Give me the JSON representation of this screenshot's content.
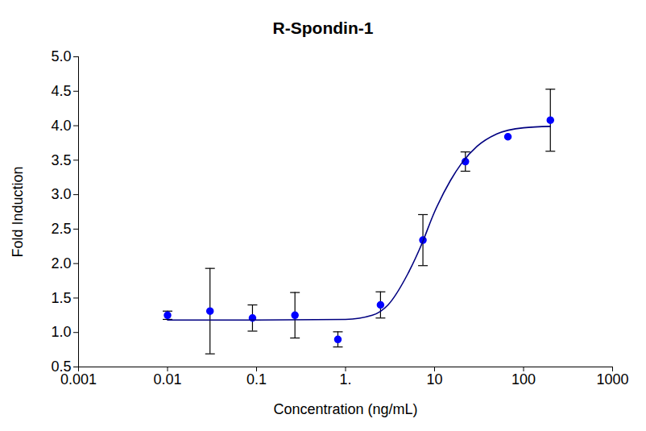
{
  "chart_data": {
    "type": "scatter",
    "title": "R-Spondin-1",
    "x_label": "Concentration (ng/mL)",
    "y_label": "Fold Induction",
    "log": "x",
    "grid": false,
    "xlim": [
      0.001,
      1000
    ],
    "xticks": [
      0.001,
      0.01,
      0.1,
      {
        "value": 1,
        "label": "1."
      },
      10,
      100,
      1000
    ],
    "ylim": [
      0.5,
      5.0
    ],
    "yticks": [
      0.5,
      {
        "value": 1,
        "label": "1.0"
      },
      1.5,
      {
        "value": 2,
        "label": "2.0"
      },
      2.5,
      {
        "value": 3,
        "label": "3.0"
      },
      3.5,
      {
        "value": 4,
        "label": "4.0"
      },
      4.5,
      {
        "value": 5,
        "label": "5.0"
      }
    ],
    "series": [
      {
        "type": "scatter",
        "marker": "circle",
        "color": "#0000ff",
        "x": [
          0.01,
          0.03,
          0.09,
          0.27,
          0.82,
          2.47,
          7.4,
          22.2,
          66.7,
          200
        ],
        "values": [
          1.25,
          1.31,
          1.21,
          1.25,
          0.9,
          1.4,
          2.34,
          3.48,
          3.84,
          4.08
        ],
        "error": [
          0.06,
          0.62,
          0.19,
          0.33,
          0.11,
          0.19,
          0.37,
          0.14,
          null,
          0.45
        ]
      },
      {
        "type": "line",
        "color": "#000080",
        "x": [
          0.01,
          0.1,
          1,
          2,
          3,
          5,
          7,
          10,
          15,
          20,
          30,
          50,
          100,
          200
        ],
        "values": [
          1.18,
          1.18,
          1.19,
          1.25,
          1.4,
          1.85,
          2.25,
          2.75,
          3.2,
          3.45,
          3.7,
          3.88,
          3.97,
          3.99
        ]
      }
    ]
  }
}
